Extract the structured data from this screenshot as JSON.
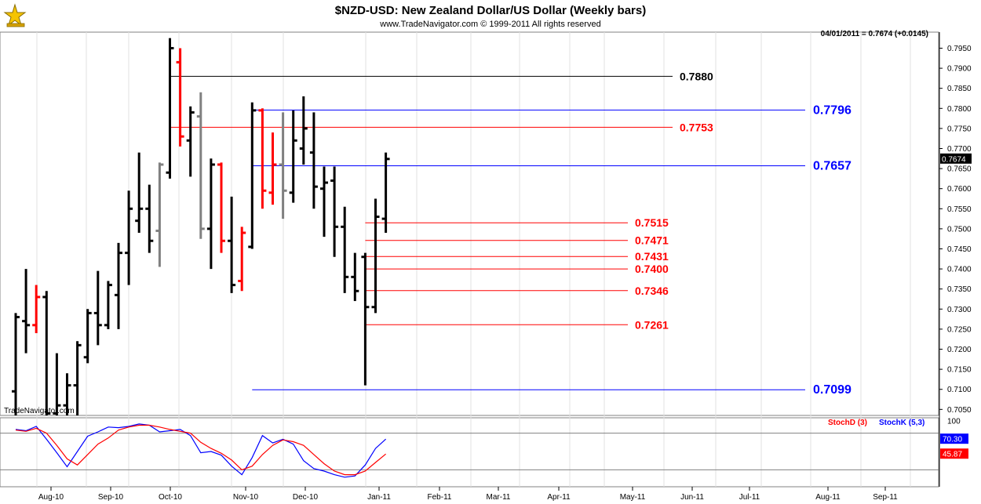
{
  "chart_data": [
    {
      "type": "ohlc",
      "title": "$NZD-USD:  New Zealand Dollar/US Dollar  (Weekly bars)",
      "subtitle": "www.TradeNavigator.com © 1999-2011 All rights reserved",
      "status_line": "04/01/2011 = 0.7674 (+0.0145)",
      "watermark": "TradeNavigator.com",
      "last_price_label": "0.7674",
      "ylim": [
        0.7035,
        0.799
      ],
      "y_ticks": [
        "0.7050",
        "0.7100",
        "0.7150",
        "0.7200",
        "0.7250",
        "0.7300",
        "0.7350",
        "0.7400",
        "0.7450",
        "0.7500",
        "0.7550",
        "0.7600",
        "0.7650",
        "0.7700",
        "0.7750",
        "0.7800",
        "0.7850",
        "0.7900",
        "0.7950"
      ],
      "x_ticks": [
        "Aug-10",
        "Sep-10",
        "Oct-10",
        "Nov-10",
        "Dec-10",
        "Jan-11",
        "Feb-11",
        "Mar-11",
        "Apr-11",
        "May-11",
        "Jun-11",
        "Jul-11",
        "Aug-11",
        "Sep-11"
      ],
      "colors": {
        "up": "#000000",
        "down": "#ff0000",
        "flat": "#808080",
        "blue_level": "#0000ff",
        "red_level": "#ff0000",
        "black_level": "#000000"
      },
      "bars": [
        {
          "o": 0.7095,
          "h": 0.729,
          "l": 0.7035,
          "c": 0.728,
          "color": "black"
        },
        {
          "o": 0.727,
          "h": 0.74,
          "l": 0.719,
          "c": 0.726,
          "color": "black"
        },
        {
          "o": 0.726,
          "h": 0.736,
          "l": 0.724,
          "c": 0.733,
          "color": "red"
        },
        {
          "o": 0.733,
          "h": 0.7345,
          "l": 0.7035,
          "c": 0.704,
          "color": "black"
        },
        {
          "o": 0.704,
          "h": 0.719,
          "l": 0.7035,
          "c": 0.706,
          "color": "black"
        },
        {
          "o": 0.706,
          "h": 0.714,
          "l": 0.7035,
          "c": 0.711,
          "color": "black"
        },
        {
          "o": 0.711,
          "h": 0.722,
          "l": 0.7035,
          "c": 0.721,
          "color": "black"
        },
        {
          "o": 0.718,
          "h": 0.73,
          "l": 0.7165,
          "c": 0.729,
          "color": "black"
        },
        {
          "o": 0.729,
          "h": 0.7395,
          "l": 0.721,
          "c": 0.726,
          "color": "black"
        },
        {
          "o": 0.726,
          "h": 0.737,
          "l": 0.725,
          "c": 0.736,
          "color": "black"
        },
        {
          "o": 0.7335,
          "h": 0.7465,
          "l": 0.725,
          "c": 0.744,
          "color": "black"
        },
        {
          "o": 0.744,
          "h": 0.7595,
          "l": 0.736,
          "c": 0.755,
          "color": "black"
        },
        {
          "o": 0.752,
          "h": 0.769,
          "l": 0.749,
          "c": 0.755,
          "color": "black"
        },
        {
          "o": 0.755,
          "h": 0.761,
          "l": 0.744,
          "c": 0.747,
          "color": "black"
        },
        {
          "o": 0.7495,
          "h": 0.7665,
          "l": 0.7405,
          "c": 0.766,
          "color": "gray"
        },
        {
          "o": 0.764,
          "h": 0.7975,
          "l": 0.7625,
          "c": 0.795,
          "color": "black"
        },
        {
          "o": 0.7915,
          "h": 0.795,
          "l": 0.7705,
          "c": 0.773,
          "color": "red"
        },
        {
          "o": 0.772,
          "h": 0.7805,
          "l": 0.763,
          "c": 0.779,
          "color": "black"
        },
        {
          "o": 0.778,
          "h": 0.784,
          "l": 0.7475,
          "c": 0.75,
          "color": "gray"
        },
        {
          "o": 0.75,
          "h": 0.7675,
          "l": 0.74,
          "c": 0.766,
          "color": "black"
        },
        {
          "o": 0.766,
          "h": 0.7665,
          "l": 0.744,
          "c": 0.747,
          "color": "red"
        },
        {
          "o": 0.747,
          "h": 0.758,
          "l": 0.734,
          "c": 0.736,
          "color": "black"
        },
        {
          "o": 0.737,
          "h": 0.7505,
          "l": 0.7345,
          "c": 0.749,
          "color": "red"
        },
        {
          "o": 0.7455,
          "h": 0.7815,
          "l": 0.745,
          "c": 0.7795,
          "color": "black"
        },
        {
          "o": 0.7795,
          "h": 0.78,
          "l": 0.755,
          "c": 0.7595,
          "color": "red"
        },
        {
          "o": 0.759,
          "h": 0.774,
          "l": 0.756,
          "c": 0.766,
          "color": "red"
        },
        {
          "o": 0.766,
          "h": 0.779,
          "l": 0.7525,
          "c": 0.7595,
          "color": "gray"
        },
        {
          "o": 0.759,
          "h": 0.7795,
          "l": 0.7565,
          "c": 0.772,
          "color": "black"
        },
        {
          "o": 0.77,
          "h": 0.783,
          "l": 0.766,
          "c": 0.775,
          "color": "black"
        },
        {
          "o": 0.769,
          "h": 0.779,
          "l": 0.755,
          "c": 0.7605,
          "color": "black"
        },
        {
          "o": 0.76,
          "h": 0.7655,
          "l": 0.748,
          "c": 0.7615,
          "color": "black"
        },
        {
          "o": 0.762,
          "h": 0.7655,
          "l": 0.743,
          "c": 0.7505,
          "color": "black"
        },
        {
          "o": 0.7505,
          "h": 0.7555,
          "l": 0.734,
          "c": 0.738,
          "color": "black"
        },
        {
          "o": 0.738,
          "h": 0.744,
          "l": 0.732,
          "c": 0.7345,
          "color": "black"
        },
        {
          "o": 0.743,
          "h": 0.744,
          "l": 0.711,
          "c": 0.7305,
          "color": "black"
        },
        {
          "o": 0.7305,
          "h": 0.7575,
          "l": 0.729,
          "c": 0.753,
          "color": "black"
        },
        {
          "o": 0.7525,
          "h": 0.769,
          "l": 0.749,
          "c": 0.7674,
          "color": "black"
        }
      ],
      "levels": [
        {
          "value": 0.788,
          "label": "0.7880",
          "color": "black",
          "from_bar": 15,
          "size": "small"
        },
        {
          "value": 0.7796,
          "label": "0.7796",
          "color": "blue",
          "from_bar": 23,
          "size": "large"
        },
        {
          "value": 0.7753,
          "label": "0.7753",
          "color": "red",
          "from_bar": 15,
          "size": "small"
        },
        {
          "value": 0.7657,
          "label": "0.7657",
          "color": "blue",
          "from_bar": 23,
          "size": "large"
        },
        {
          "value": 0.7515,
          "label": "0.7515",
          "color": "red",
          "from_bar": 34,
          "size": "small"
        },
        {
          "value": 0.7471,
          "label": "0.7471",
          "color": "red",
          "from_bar": 34,
          "size": "small"
        },
        {
          "value": 0.7431,
          "label": "0.7431",
          "color": "red",
          "from_bar": 34,
          "size": "small"
        },
        {
          "value": 0.74,
          "label": "0.7400",
          "color": "red",
          "from_bar": 34,
          "size": "small"
        },
        {
          "value": 0.7346,
          "label": "0.7346",
          "color": "red",
          "from_bar": 34,
          "size": "small"
        },
        {
          "value": 0.7261,
          "label": "0.7261",
          "color": "red",
          "from_bar": 34,
          "size": "small"
        },
        {
          "value": 0.7099,
          "label": "0.7099",
          "color": "blue",
          "from_bar": 23,
          "size": "large"
        }
      ]
    },
    {
      "type": "line",
      "legend": [
        "StochD (3)",
        "StochK (5,3)"
      ],
      "ylim": [
        0,
        100
      ],
      "y_ticks": [
        "100"
      ],
      "reference_lines": [
        80,
        20
      ],
      "last_values": {
        "StochK": "70.30",
        "StochD": "45.87"
      },
      "series": [
        {
          "name": "StochK (5,3)",
          "color": "#0000ff",
          "values": [
            86,
            84,
            91,
            70,
            48,
            25,
            50,
            75,
            82,
            90,
            89,
            91,
            95,
            93,
            82,
            84,
            86,
            76,
            48,
            50,
            44,
            26,
            12,
            40,
            76,
            64,
            70,
            62,
            35,
            22,
            18,
            12,
            8,
            10,
            28,
            55,
            70.3
          ]
        },
        {
          "name": "StochD (3)",
          "color": "#ff0000",
          "values": [
            85,
            83,
            88,
            80,
            60,
            38,
            28,
            45,
            62,
            72,
            85,
            90,
            93,
            93,
            90,
            86,
            83,
            80,
            65,
            55,
            47,
            36,
            20,
            26,
            45,
            60,
            69,
            66,
            60,
            45,
            30,
            18,
            12,
            12,
            18,
            32,
            45.87
          ]
        }
      ]
    }
  ]
}
